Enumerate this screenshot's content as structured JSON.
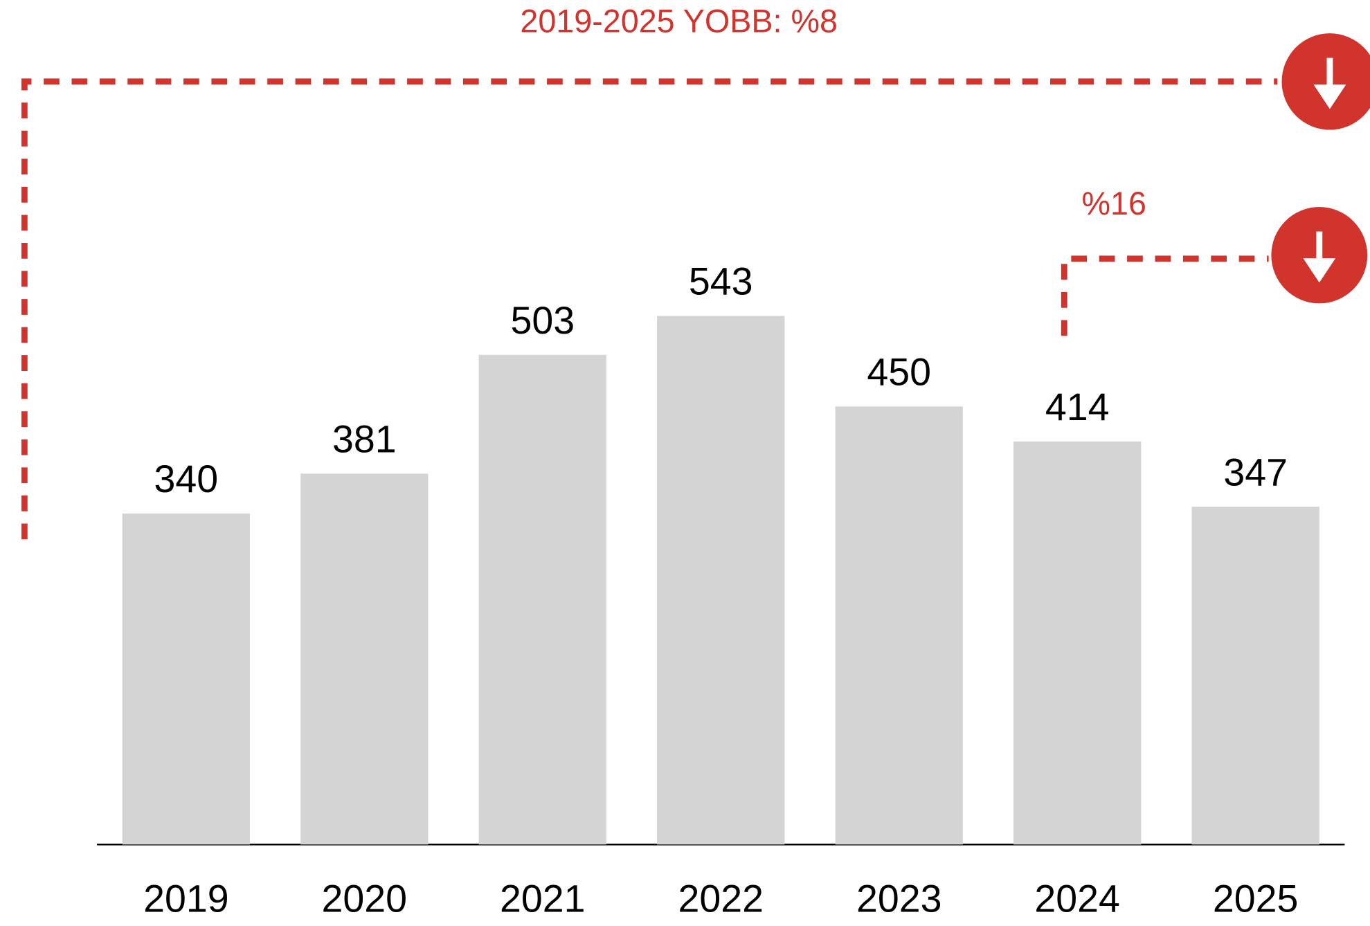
{
  "chart_data": {
    "type": "bar",
    "categories": [
      "2019",
      "2020",
      "2021",
      "2022",
      "2023",
      "2024",
      "2025"
    ],
    "values": [
      340,
      381,
      503,
      543,
      450,
      414,
      347
    ],
    "color": "#d4d4d4",
    "accent_color": "#d0342c",
    "ylim": [
      0,
      600
    ],
    "annotations": [
      "2019-2025 YOBB: %8",
      "%16"
    ]
  }
}
